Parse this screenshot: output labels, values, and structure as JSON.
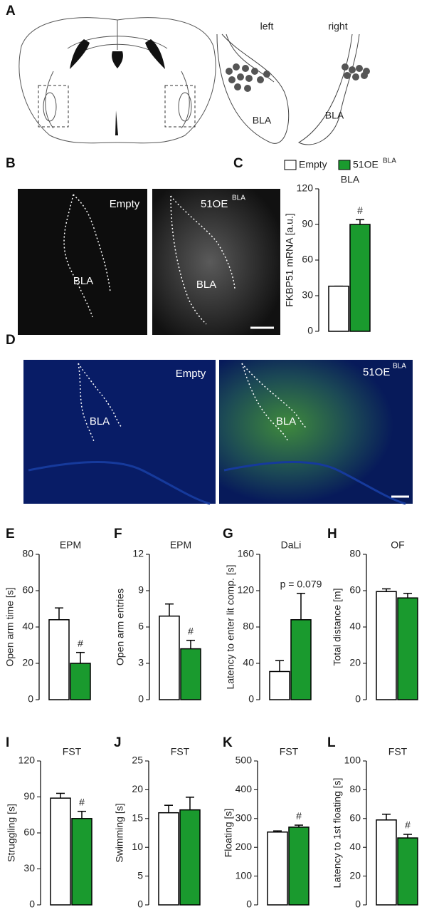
{
  "panels": {
    "A": {
      "letter": "A",
      "left": "left",
      "right": "right",
      "bla_left": "BLA",
      "bla_right": "BLA"
    },
    "B": {
      "letter": "B",
      "empty": "Empty",
      "oe": "51OE",
      "oe_sup": "BLA",
      "bla_left": "BLA",
      "bla_right": "BLA"
    },
    "D": {
      "letter": "D",
      "empty": "Empty",
      "oe": "51OE",
      "oe_sup": "BLA",
      "bla_left": "BLA",
      "bla_right": "BLA"
    }
  },
  "legend": [
    {
      "name": "Empty",
      "color": "#ffffff"
    },
    {
      "name": "51OE",
      "sup": "BLA",
      "color": "#1a9a2e"
    }
  ],
  "chart_data": [
    {
      "type": "bar",
      "letter": "C",
      "title": "BLA",
      "y_label": "FKBP51 mRNA [a.u.]",
      "ylim": [
        0,
        120
      ],
      "yticks": [
        0,
        30,
        60,
        90,
        120
      ],
      "values": [
        38,
        90
      ],
      "errors": [
        0,
        4
      ],
      "annotation": "#"
    },
    {
      "type": "bar",
      "letter": "E",
      "title": "EPM",
      "y_label": "Open arm time [s]",
      "ylim": [
        0,
        80
      ],
      "yticks": [
        0,
        20,
        40,
        60,
        80
      ],
      "values": [
        44,
        20
      ],
      "errors": [
        6.5,
        6
      ],
      "annotation": "#"
    },
    {
      "type": "bar",
      "letter": "F",
      "title": "EPM",
      "y_label": "Open arm entries",
      "ylim": [
        0,
        12
      ],
      "yticks": [
        0,
        3,
        6,
        9,
        12
      ],
      "values": [
        6.9,
        4.2
      ],
      "errors": [
        1.0,
        0.7
      ],
      "annotation": "#"
    },
    {
      "type": "bar",
      "letter": "G",
      "title": "DaLi",
      "y_label": "Latency to enter lit comp. [s]",
      "ylim": [
        0,
        160
      ],
      "yticks": [
        0,
        40,
        80,
        120,
        160
      ],
      "values": [
        31,
        88
      ],
      "errors": [
        12,
        29
      ],
      "annotation": "p = 0.079"
    },
    {
      "type": "bar",
      "letter": "H",
      "title": "OF",
      "y_label": "Total distance [m]",
      "ylim": [
        0,
        80
      ],
      "yticks": [
        0,
        20,
        40,
        60,
        80
      ],
      "values": [
        59.5,
        56
      ],
      "errors": [
        1.5,
        2.5
      ]
    },
    {
      "type": "bar",
      "letter": "I",
      "title": "FST",
      "y_label": "Struggling [s]",
      "ylim": [
        0,
        120
      ],
      "yticks": [
        0,
        30,
        60,
        90,
        120
      ],
      "values": [
        89,
        72
      ],
      "errors": [
        4,
        6
      ],
      "annotation": "#"
    },
    {
      "type": "bar",
      "letter": "J",
      "title": "FST",
      "y_label": "Swimming [s]",
      "ylim": [
        0,
        25
      ],
      "yticks": [
        0,
        5,
        10,
        15,
        20,
        25
      ],
      "values": [
        16,
        16.5
      ],
      "errors": [
        1.3,
        2.2
      ]
    },
    {
      "type": "bar",
      "letter": "K",
      "title": "FST",
      "y_label": "Floating [s]",
      "ylim": [
        0,
        500
      ],
      "yticks": [
        0,
        100,
        200,
        300,
        400,
        500
      ],
      "values": [
        253,
        270
      ],
      "errors": [
        4,
        7
      ],
      "annotation": "#"
    },
    {
      "type": "bar",
      "letter": "L",
      "title": "FST",
      "y_label": "Latency to 1st floating [s]",
      "ylim": [
        0,
        100
      ],
      "yticks": [
        0,
        20,
        40,
        60,
        80,
        100
      ],
      "values": [
        59,
        46.5
      ],
      "errors": [
        4,
        2.5
      ],
      "annotation": "#"
    }
  ]
}
